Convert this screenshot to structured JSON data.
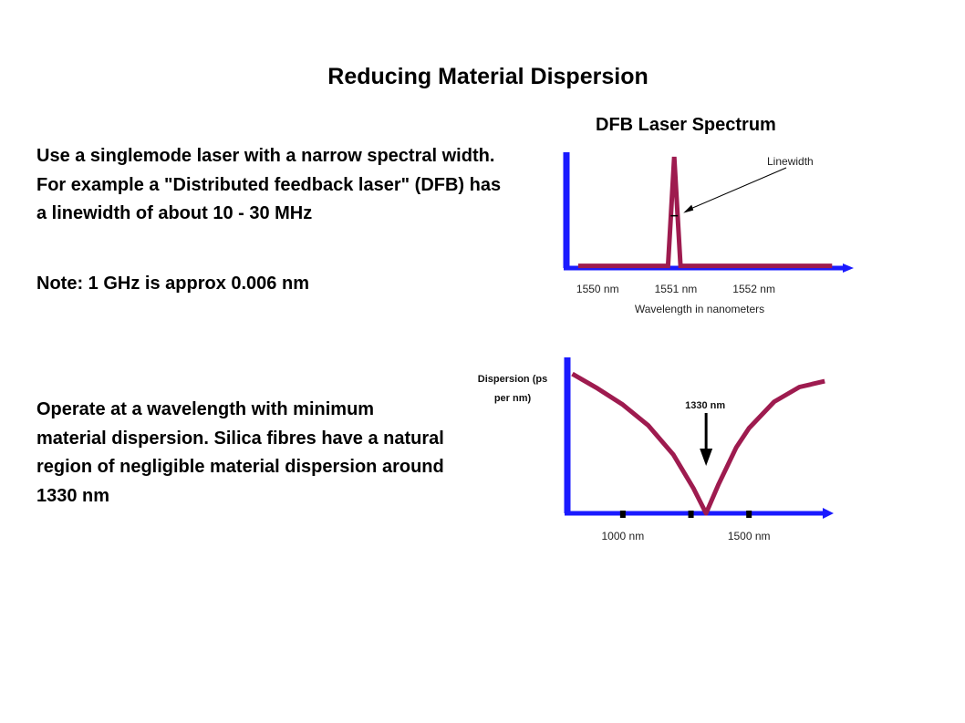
{
  "slide": {
    "title": "Reducing Material Dispersion",
    "paragraphs": [
      "Use a singlemode laser with a narrow spectral width. For example a \"Distributed feedback laser\" (DFB) has a linewidth of about 10 - 30 MHz",
      "Note:  1 GHz is approx 0.006 nm",
      "Operate at a wavelength with minimum material dispersion. Silica fibres have a natural region of negligible material dispersion around 1330 nm"
    ]
  },
  "colors": {
    "axis": "#1a1aff",
    "curve": "#9e1b4f",
    "marker": "#000000",
    "text": "#000000"
  },
  "chart_data": [
    {
      "type": "line",
      "title": "DFB Laser Spectrum",
      "xlabel": "Wavelength in nanometers",
      "ylabel": "",
      "xlim": [
        1549.6,
        1553.3
      ],
      "ylim": [
        0,
        1
      ],
      "x_ticks": [
        1550,
        1551,
        1552
      ],
      "x_tick_labels": [
        "1550 nm",
        "1551 nm",
        "1552 nm"
      ],
      "series": [
        {
          "x": [
            1549.75,
            1550.9,
            1550.98,
            1551.06,
            1553.0
          ],
          "y": [
            0.02,
            0.02,
            1.0,
            0.02,
            0.02
          ]
        }
      ],
      "annotations": [
        {
          "text": "Linewidth",
          "x": 1550.98,
          "y": 0.47
        }
      ],
      "grid": false,
      "legend": "none"
    },
    {
      "type": "line",
      "title": "",
      "xlabel": "",
      "ylabel": "Dispersion (ps per nm)",
      "xlim": [
        780,
        1850
      ],
      "ylim": [
        0,
        1
      ],
      "x_ticks": [
        1000,
        1270,
        1500
      ],
      "x_tick_labels": [
        "1000 nm",
        "",
        "1500 nm"
      ],
      "series": [
        {
          "x": [
            800,
            900,
            1000,
            1100,
            1200,
            1280,
            1330,
            1380,
            1450,
            1500,
            1600,
            1700,
            1800
          ],
          "y": [
            0.95,
            0.85,
            0.74,
            0.6,
            0.4,
            0.17,
            0.0,
            0.2,
            0.45,
            0.58,
            0.76,
            0.86,
            0.9
          ]
        }
      ],
      "annotations": [
        {
          "text": "1330 nm",
          "x": 1330,
          "y": 0.0
        }
      ],
      "grid": false,
      "legend": "none"
    }
  ]
}
